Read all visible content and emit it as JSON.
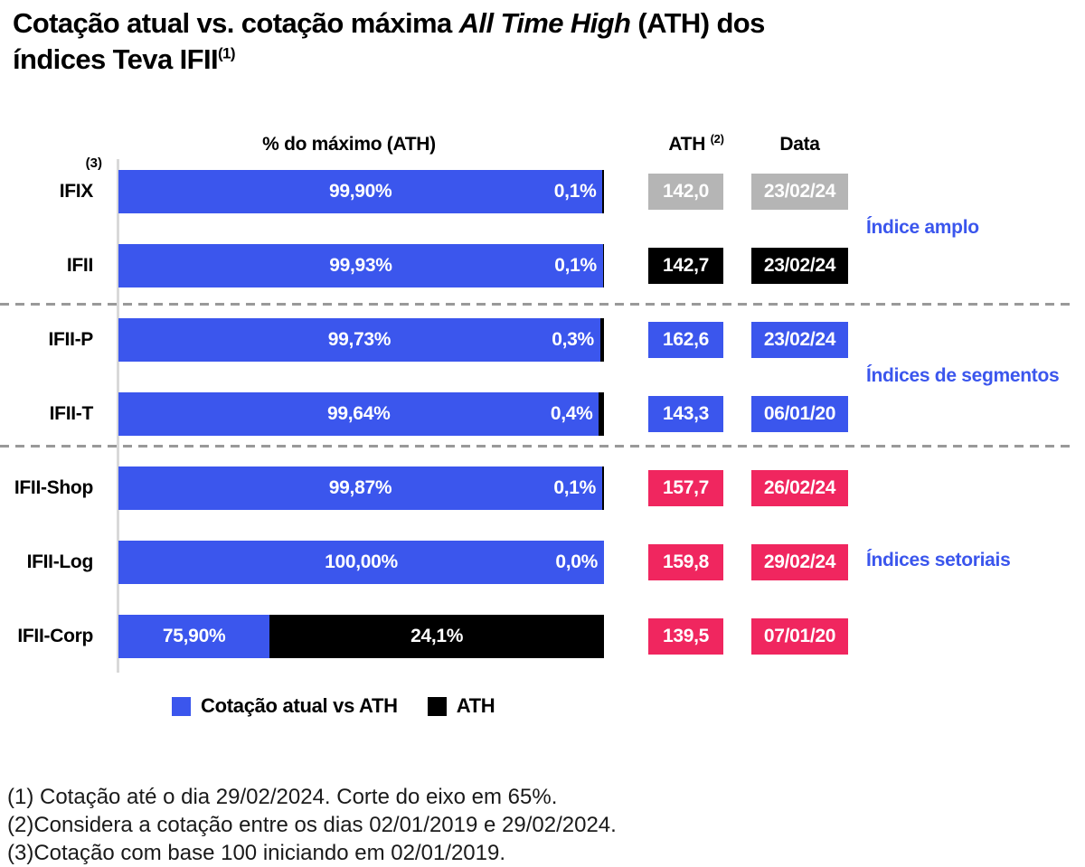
{
  "title": {
    "part1": "Cotação atual vs. cotação máxima ",
    "part2_italic": "All Time High",
    "part3": " (ATH)  dos",
    "line2": "índices Teva IFII",
    "footnote_ref": "(1)"
  },
  "columns": {
    "bar_header": "% do máximo (ATH)",
    "ath_header": "ATH",
    "ath_header_sup": "(2)",
    "date_header": "Data"
  },
  "colors": {
    "blue": "#3b56ed",
    "black": "#000000",
    "pink": "#f0265f",
    "gray": "#b5b5b5",
    "group_label_blue": "#3b56ed",
    "axis_gray": "#d9d9d9",
    "dash_gray": "#999999"
  },
  "rows": [
    {
      "label": "IFIX",
      "label_sup": "(3)",
      "current_value": 99.9,
      "current_text": "99,90%",
      "ath_value": 0.1,
      "ath_text": "0,1%",
      "ath_box": "142,0",
      "date_box": "23/02/24",
      "box_color": "gray"
    },
    {
      "label": "IFII",
      "label_sup": "",
      "current_value": 99.93,
      "current_text": "99,93%",
      "ath_value": 0.1,
      "ath_text": "0,1%",
      "ath_box": "142,7",
      "date_box": "23/02/24",
      "box_color": "black"
    },
    {
      "label": "IFII-P",
      "label_sup": "",
      "current_value": 99.73,
      "current_text": "99,73%",
      "ath_value": 0.3,
      "ath_text": "0,3%",
      "ath_box": "162,6",
      "date_box": "23/02/24",
      "box_color": "blue"
    },
    {
      "label": "IFII-T",
      "label_sup": "",
      "current_value": 99.64,
      "current_text": "99,64%",
      "ath_value": 0.4,
      "ath_text": "0,4%",
      "ath_box": "143,3",
      "date_box": "06/01/20",
      "box_color": "blue"
    },
    {
      "label": "IFII-Shop",
      "label_sup": "",
      "current_value": 99.87,
      "current_text": "99,87%",
      "ath_value": 0.1,
      "ath_text": "0,1%",
      "ath_box": "157,7",
      "date_box": "26/02/24",
      "box_color": "pink"
    },
    {
      "label": "IFII-Log",
      "label_sup": "",
      "current_value": 100.0,
      "current_text": "100,00%",
      "ath_value": 0.0,
      "ath_text": "0,0%",
      "ath_box": "159,8",
      "date_box": "29/02/24",
      "box_color": "pink"
    },
    {
      "label": "IFII-Corp",
      "label_sup": "",
      "current_value": 75.9,
      "current_text": "75,90%",
      "ath_value": 24.1,
      "ath_text": "24,1%",
      "ath_box": "139,5",
      "date_box": "07/01/20",
      "box_color": "pink"
    }
  ],
  "groups": [
    {
      "label": "Índice amplo"
    },
    {
      "label": "Índices de segmentos"
    },
    {
      "label": "Índices setoriais"
    }
  ],
  "legend": [
    {
      "label": "Cotação atual vs ATH",
      "color": "blue"
    },
    {
      "label": "ATH",
      "color": "black"
    }
  ],
  "footnotes": [
    "(1) Cotação até o dia 29/02/2024. Corte do eixo em 65%.",
    "(2)Considera a cotação entre os dias 02/01/2019 e 29/02/2024.",
    "(3)Cotação com base 100 iniciando em 02/01/2019."
  ],
  "chart_data": {
    "type": "bar",
    "orientation": "horizontal",
    "stacked": true,
    "title": "Cotação atual vs. cotação máxima All Time High (ATH) dos índices Teva IFII",
    "xlabel": "% do máximo (ATH)",
    "xlim": [
      65,
      100
    ],
    "axis_cut_pct": 65,
    "grid": false,
    "legend_position": "bottom",
    "categories": [
      "IFIX",
      "IFII",
      "IFII-P",
      "IFII-T",
      "IFII-Shop",
      "IFII-Log",
      "IFII-Corp"
    ],
    "series": [
      {
        "name": "Cotação atual vs ATH",
        "values": [
          99.9,
          99.93,
          99.73,
          99.64,
          99.87,
          100.0,
          75.9
        ]
      },
      {
        "name": "ATH",
        "values": [
          0.1,
          0.1,
          0.3,
          0.4,
          0.1,
          0.0,
          24.1
        ]
      }
    ],
    "ath_values": [
      142.0,
      142.7,
      162.6,
      143.3,
      157.7,
      159.8,
      139.5
    ],
    "ath_dates": [
      "23/02/24",
      "23/02/24",
      "23/02/24",
      "06/01/20",
      "26/02/24",
      "29/02/24",
      "07/01/20"
    ],
    "group_annotations": [
      {
        "label": "Índice amplo",
        "rows": [
          "IFIX",
          "IFII"
        ]
      },
      {
        "label": "Índices de segmentos",
        "rows": [
          "IFII-P",
          "IFII-T"
        ]
      },
      {
        "label": "Índices setoriais",
        "rows": [
          "IFII-Shop",
          "IFII-Log",
          "IFII-Corp"
        ]
      }
    ]
  },
  "layout": {
    "row_top_start": 188,
    "row_pitch": 82,
    "group_label_centers": [
      253,
      417,
      621
    ],
    "separator_tops": [
      335,
      492
    ]
  }
}
